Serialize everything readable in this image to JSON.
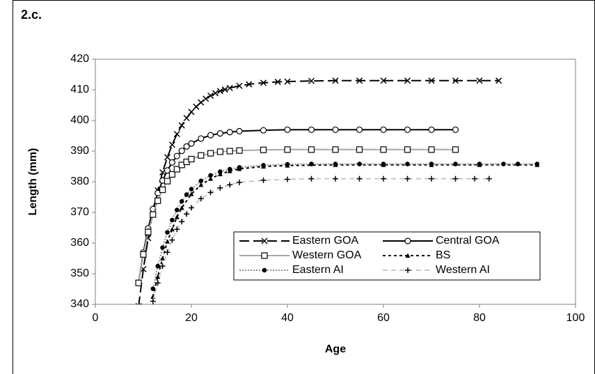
{
  "chart_data": {
    "type": "line",
    "title": "2.c.",
    "x_label": "Age",
    "y_label": "Length (mm)",
    "xlim": [
      0,
      100
    ],
    "xticks": [
      0,
      20,
      40,
      60,
      80,
      100
    ],
    "ylim": [
      340,
      420
    ],
    "yticks": [
      340,
      350,
      360,
      370,
      380,
      390,
      400,
      410,
      420
    ],
    "grid": false,
    "legend": "lower right",
    "series": [
      {
        "name": "Eastern GOA",
        "color": "#000000",
        "dash": "14,6",
        "marker": "x",
        "x": [
          9,
          10,
          11,
          12,
          13,
          14,
          15,
          16,
          17,
          18,
          19,
          20,
          21,
          22,
          23,
          24,
          25,
          26,
          27,
          28,
          30,
          32,
          35,
          38,
          40,
          45,
          50,
          55,
          60,
          65,
          70,
          75,
          80,
          84
        ],
        "values": [
          339.4,
          351.5,
          361.6,
          370.1,
          377.2,
          383.1,
          388,
          392.1,
          395.6,
          398.4,
          400.8,
          402.8,
          404.5,
          405.9,
          407.1,
          408.1,
          408.9,
          409.6,
          410.1,
          410.6,
          411.3,
          411.8,
          412.3,
          412.6,
          412.7,
          412.9,
          413,
          413,
          413,
          413,
          413,
          413,
          413,
          413
        ]
      },
      {
        "name": "Central GOA",
        "color": "#000000",
        "dash": "",
        "marker": "circle",
        "x": [
          9,
          10,
          11,
          12,
          13,
          14,
          15,
          16,
          17,
          18,
          19,
          20,
          22,
          24,
          26,
          28,
          30,
          35,
          40,
          45,
          50,
          55,
          60,
          65,
          70,
          75
        ],
        "values": [
          347,
          356.9,
          364.8,
          371.1,
          376.3,
          380.4,
          383.7,
          386.3,
          388.4,
          390.1,
          391.5,
          392.5,
          394.1,
          395.2,
          395.8,
          396.2,
          396.5,
          396.8,
          397,
          397,
          397,
          397,
          397,
          397,
          397,
          397
        ]
      },
      {
        "name": "Western GOA",
        "color": "#a6a6a6",
        "dash": "",
        "marker": "square",
        "x": [
          9,
          10,
          11,
          12,
          13,
          14,
          15,
          16,
          17,
          18,
          19,
          20,
          22,
          24,
          26,
          28,
          30,
          35,
          40,
          45,
          50,
          55,
          60,
          65,
          70,
          75
        ],
        "values": [
          347,
          356.3,
          363.6,
          369.3,
          373.8,
          377.4,
          380.2,
          382.4,
          384.1,
          385.5,
          386.5,
          387.4,
          388.6,
          389.3,
          389.8,
          390,
          390.2,
          390.4,
          390.5,
          390.5,
          390.5,
          390.5,
          390.5,
          390.5,
          390.5,
          390.5
        ]
      },
      {
        "name": "BS",
        "color": "#000000",
        "dash": "4,4",
        "marker": "triangle",
        "x": [
          12,
          13,
          14,
          15,
          16,
          17,
          18,
          20,
          22,
          24,
          26,
          28,
          30,
          35,
          40,
          50,
          60,
          70,
          80,
          92
        ],
        "values": [
          342.5,
          349,
          355,
          360.5,
          364.5,
          368.5,
          371.5,
          376,
          379,
          381,
          382.5,
          383.5,
          384.2,
          385,
          385.3,
          385.5,
          385.5,
          385.5,
          385.5,
          385.5
        ]
      },
      {
        "name": "Eastern AI",
        "color": "#8c8c8c",
        "dash": "2,2",
        "marker": "dot",
        "x": [
          12,
          13,
          14,
          15,
          16,
          17,
          18,
          19,
          20,
          22,
          24,
          26,
          28,
          30,
          35,
          40,
          45,
          50,
          55,
          60,
          65,
          70,
          75,
          80,
          85,
          88,
          92
        ],
        "values": [
          345.1,
          352.5,
          358.5,
          363.5,
          367.5,
          370.8,
          373.6,
          375.8,
          377.6,
          380.3,
          382.1,
          383.3,
          384.1,
          384.7,
          385.4,
          385.7,
          385.8,
          385.8,
          385.8,
          385.8,
          385.8,
          385.8,
          385.8,
          385.8,
          385.8,
          385.8,
          385.8
        ]
      },
      {
        "name": "Western AI",
        "color": "#c8c8c8",
        "dash": "7,5",
        "marker": "plus",
        "x": [
          12,
          13,
          14,
          15,
          16,
          17,
          18,
          19,
          20,
          22,
          24,
          26,
          28,
          30,
          35,
          40,
          45,
          50,
          55,
          60,
          65,
          70,
          75,
          79,
          82
        ],
        "values": [
          341,
          347,
          352.5,
          357,
          361,
          364.5,
          367,
          369.5,
          371.5,
          374.5,
          376.5,
          378,
          379,
          379.8,
          380.5,
          380.8,
          381,
          381,
          381,
          381,
          381,
          381,
          381,
          381,
          381
        ]
      }
    ]
  }
}
